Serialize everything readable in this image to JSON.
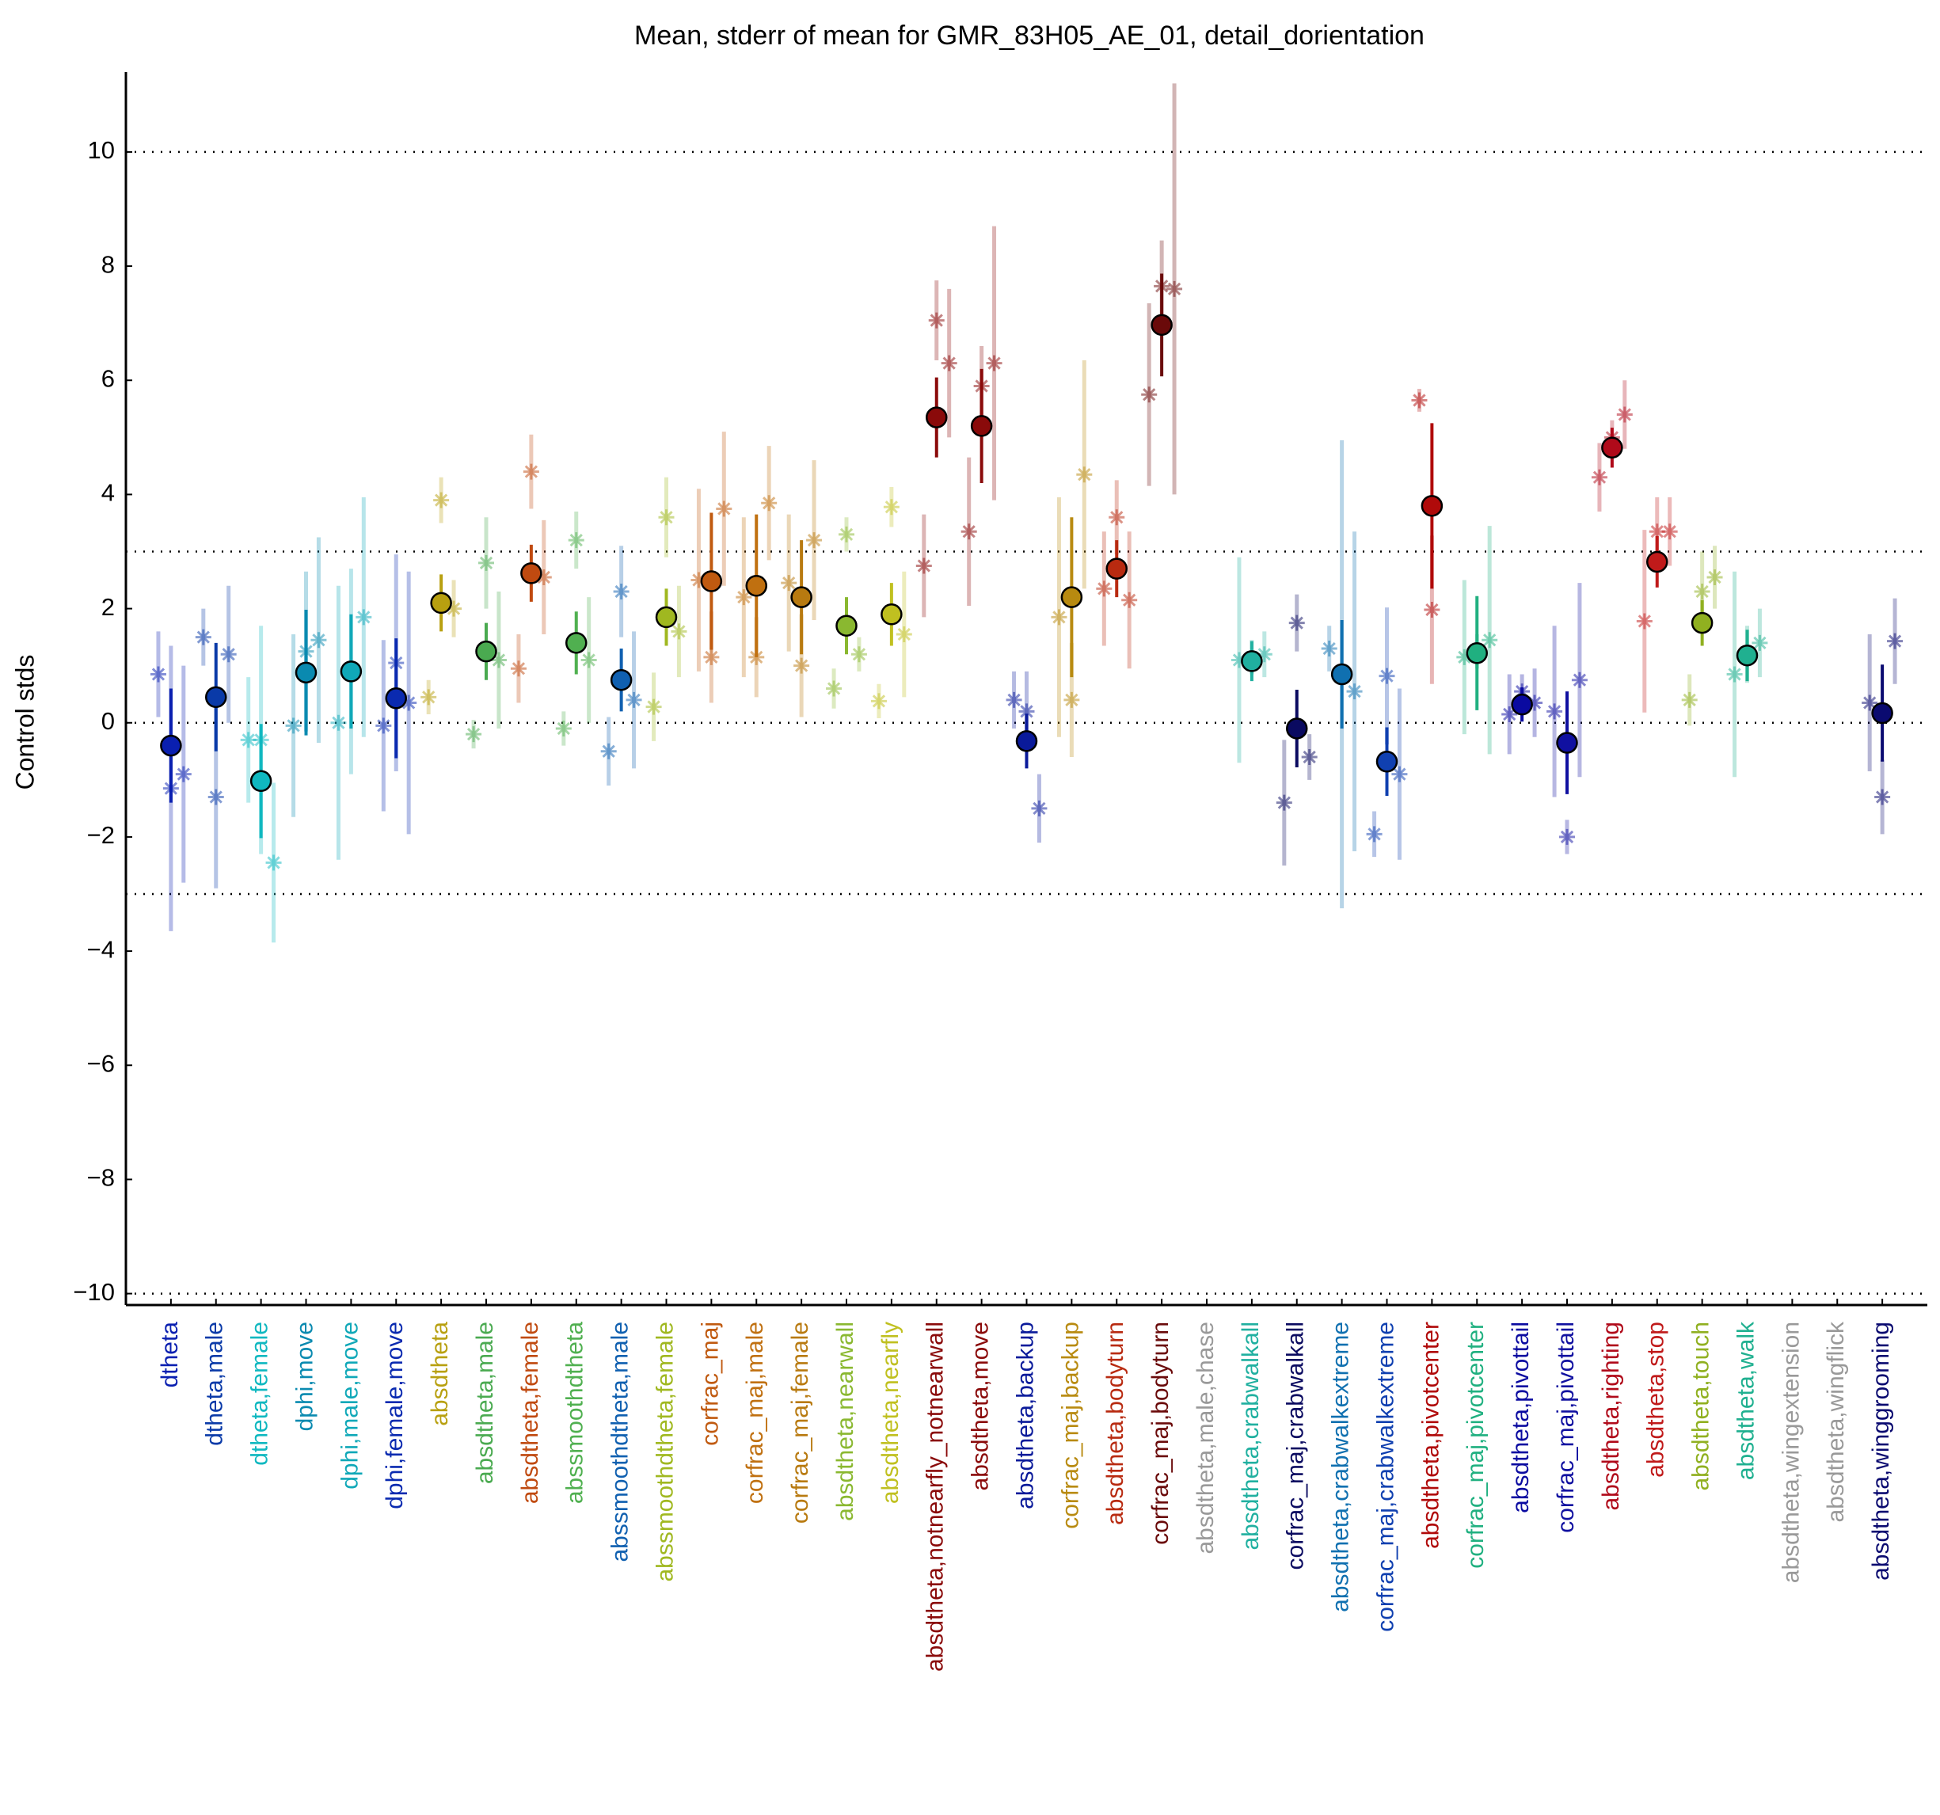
{
  "chart_data": {
    "type": "errorbar",
    "title": "Mean, stderr of mean for GMR_83H05_AE_01, detail_dorientation",
    "ylabel": "Control stds",
    "categories": [
      "dtheta",
      "dtheta,male",
      "dtheta,female",
      "dphi,move",
      "dphi,male,move",
      "dphi,female,move",
      "absdtheta",
      "absdtheta,male",
      "absdtheta,female",
      "abssmoothdtheta",
      "abssmoothdtheta,male",
      "abssmoothdtheta,female",
      "corfrac_maj",
      "corfrac_maj,male",
      "corfrac_maj,female",
      "absdtheta,nearwall",
      "absdtheta,nearfly",
      "absdtheta,notnearfly_notnearwall",
      "absdtheta,move",
      "absdtheta,backup",
      "corfrac_maj,backup",
      "absdtheta,bodyturn",
      "corfrac_maj,bodyturn",
      "absdtheta,male,chase",
      "absdtheta,crabwalkall",
      "corfrac_maj,crabwalkall",
      "absdtheta,crabwalkextreme",
      "corfrac_maj,crabwalkextreme",
      "absdtheta,pivotcenter",
      "corfrac_maj,pivotcenter",
      "absdtheta,pivottail",
      "corfrac_maj,pivottail",
      "absdtheta,righting",
      "absdtheta,stop",
      "absdtheta,touch",
      "absdtheta,walk",
      "absdtheta,wingextension",
      "absdtheta,wingflick",
      "absdtheta,winggrooming"
    ],
    "colors": [
      "#0a1fb0",
      "#0a3aa8",
      "#10b8c0",
      "#0a8ab0",
      "#10a8b8",
      "#0a2ab0",
      "#b8a010",
      "#4aaa50",
      "#c04a10",
      "#50b050",
      "#1060b0",
      "#a0b820",
      "#c05a10",
      "#c07010",
      "#b87a10",
      "#8ab830",
      "#c0c020",
      "#8a0a0a",
      "#8a0a0a",
      "#0a1a9a",
      "#b88a10",
      "#b82a10",
      "#6a0a0a",
      "#999999",
      "#20b0a0",
      "#0a0a60",
      "#1070b0",
      "#1040b0",
      "#b00a0a",
      "#20b080",
      "#0a0aa0",
      "#1010a0",
      "#b00a1a",
      "#c01a1a",
      "#90b020",
      "#20b090",
      "#999999",
      "#999999",
      "#0a0a70"
    ],
    "values": [
      -0.4,
      0.45,
      -1.02,
      0.88,
      0.9,
      0.43,
      2.1,
      1.25,
      2.62,
      1.4,
      0.75,
      1.85,
      2.48,
      2.4,
      2.2,
      1.7,
      1.9,
      5.35,
      5.2,
      -0.32,
      2.2,
      2.7,
      6.97,
      null,
      1.08,
      -0.1,
      0.85,
      -0.68,
      3.8,
      1.22,
      0.32,
      -0.35,
      4.82,
      2.82,
      1.75,
      1.18,
      null,
      null,
      0.17
    ],
    "errors": [
      1.0,
      0.95,
      1.0,
      1.1,
      1.0,
      1.05,
      0.5,
      0.5,
      0.5,
      0.55,
      0.55,
      0.5,
      1.2,
      1.25,
      1.0,
      0.5,
      0.55,
      0.7,
      1.0,
      0.48,
      1.4,
      0.5,
      0.9,
      null,
      0.35,
      0.68,
      0.95,
      0.6,
      1.45,
      1.0,
      0.3,
      0.9,
      0.35,
      0.45,
      0.4,
      0.45,
      null,
      null,
      0.85
    ],
    "replicates": [
      {
        "values": [
          0.85,
          1.5,
          -0.3,
          -0.05,
          0.0,
          -0.05,
          0.45,
          -0.2,
          0.95,
          -0.1,
          -0.5,
          0.28,
          2.5,
          2.2,
          2.45,
          0.6,
          0.38,
          2.75,
          3.35,
          0.4,
          1.85,
          2.35,
          5.75,
          null,
          1.1,
          -1.4,
          1.3,
          -1.95,
          5.65,
          1.15,
          0.15,
          0.2,
          4.3,
          1.78,
          0.4,
          0.85,
          null,
          null,
          0.35
        ],
        "errors": [
          0.75,
          0.5,
          1.1,
          1.6,
          2.4,
          1.5,
          0.3,
          0.25,
          0.6,
          0.3,
          0.6,
          0.6,
          1.6,
          1.4,
          1.2,
          0.35,
          0.3,
          0.9,
          1.3,
          0.5,
          2.1,
          1.0,
          1.6,
          null,
          1.8,
          1.1,
          0.4,
          0.4,
          0.2,
          1.35,
          0.7,
          1.5,
          0.6,
          1.6,
          0.45,
          1.8,
          null,
          null,
          1.2
        ]
      },
      {
        "values": [
          -1.15,
          -1.3,
          -0.3,
          1.25,
          0.9,
          1.05,
          3.9,
          2.8,
          4.4,
          3.2,
          2.3,
          3.6,
          1.15,
          1.15,
          1.0,
          3.3,
          3.78,
          7.05,
          5.9,
          0.2,
          0.4,
          3.6,
          7.65,
          null,
          1.15,
          1.75,
          0.85,
          0.82,
          1.98,
          1.25,
          0.55,
          -2.0,
          5.0,
          3.35,
          2.3,
          1.2,
          null,
          null,
          -1.3
        ],
        "errors": [
          2.5,
          1.6,
          2.0,
          1.4,
          1.8,
          1.9,
          0.4,
          0.8,
          0.65,
          0.5,
          0.8,
          0.7,
          0.8,
          0.7,
          0.9,
          0.3,
          0.35,
          0.7,
          0.7,
          0.7,
          1.0,
          0.65,
          0.8,
          null,
          0.3,
          0.5,
          4.1,
          1.2,
          1.3,
          0.3,
          0.3,
          0.3,
          0.3,
          0.6,
          0.7,
          0.5,
          null,
          null,
          0.65
        ]
      },
      {
        "values": [
          -0.9,
          1.2,
          -2.45,
          1.45,
          1.85,
          0.35,
          2.0,
          1.1,
          2.55,
          1.1,
          0.4,
          1.6,
          3.75,
          3.85,
          3.2,
          1.2,
          1.55,
          6.3,
          6.3,
          -1.5,
          4.35,
          2.15,
          7.6,
          null,
          1.2,
          -0.6,
          0.55,
          -0.9,
          null,
          1.45,
          0.35,
          0.75,
          5.4,
          3.35,
          2.55,
          1.4,
          null,
          null,
          1.43
        ],
        "errors": [
          1.9,
          1.2,
          1.4,
          1.8,
          2.1,
          2.3,
          0.5,
          1.2,
          1.0,
          1.1,
          1.2,
          0.8,
          1.35,
          1.0,
          1.4,
          0.3,
          1.1,
          1.3,
          2.4,
          0.6,
          2.0,
          1.2,
          3.6,
          null,
          0.4,
          0.4,
          2.8,
          1.5,
          null,
          2.0,
          0.6,
          1.7,
          0.6,
          0.6,
          0.55,
          0.6,
          null,
          null,
          0.75
        ]
      }
    ],
    "ylim": [
      -10.2,
      11.4
    ],
    "yticks": [
      {
        "value": -10,
        "label": "−10"
      },
      {
        "value": -8,
        "label": "−8"
      },
      {
        "value": -6,
        "label": "−6"
      },
      {
        "value": -4,
        "label": "−4"
      },
      {
        "value": -2,
        "label": "−2"
      },
      0,
      2,
      4,
      6,
      8,
      10
    ],
    "reference_lines": [
      -10,
      -3,
      0,
      3,
      10
    ]
  }
}
